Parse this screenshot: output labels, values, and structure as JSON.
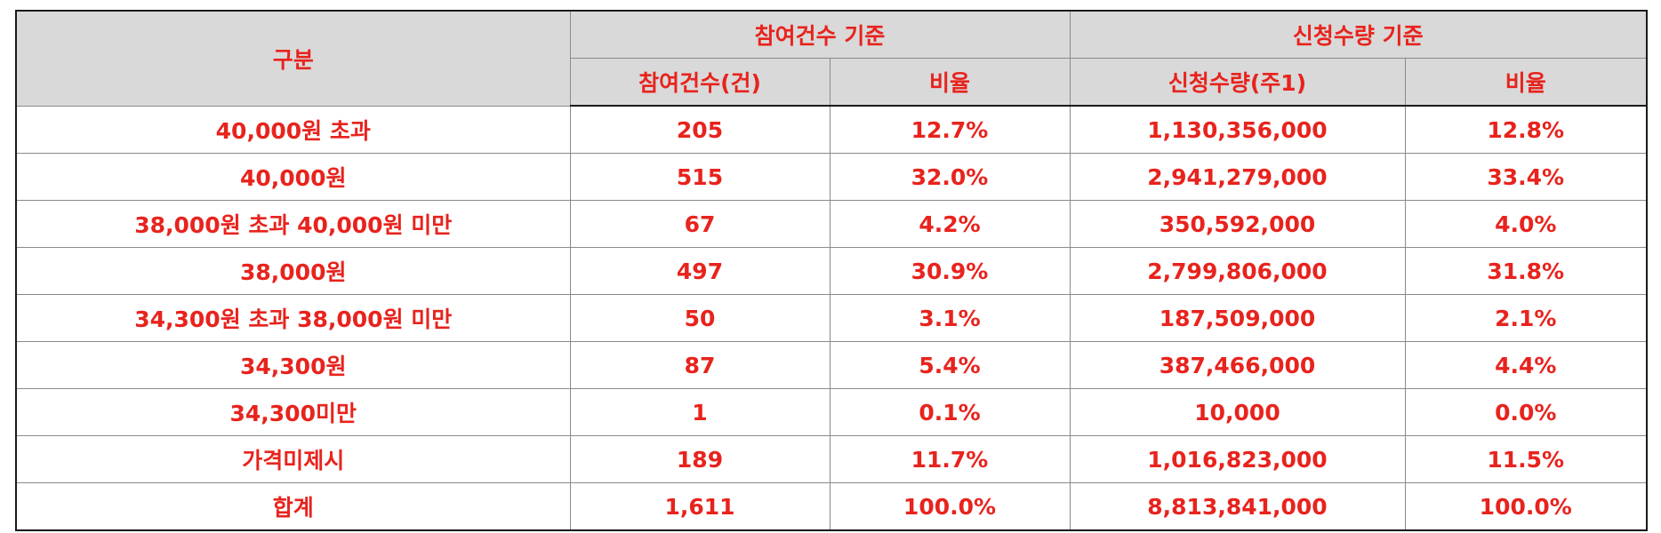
{
  "header": {
    "category_label": "구분",
    "group_count": "참여건수 기준",
    "group_qty": "신청수량 기준",
    "col_count": "참여건수(건)",
    "col_count_ratio": "비율",
    "col_qty": "신청수량(주1)",
    "col_qty_ratio": "비율"
  },
  "rows": [
    {
      "category": "40,000원 초과",
      "count": "205",
      "count_ratio": "12.7%",
      "qty": "1,130,356,000",
      "qty_ratio": "12.8%"
    },
    {
      "category": "40,000원",
      "count": "515",
      "count_ratio": "32.0%",
      "qty": "2,941,279,000",
      "qty_ratio": "33.4%"
    },
    {
      "category": "38,000원 초과 40,000원 미만",
      "count": "67",
      "count_ratio": "4.2%",
      "qty": "350,592,000",
      "qty_ratio": "4.0%"
    },
    {
      "category": "38,000원",
      "count": "497",
      "count_ratio": "30.9%",
      "qty": "2,799,806,000",
      "qty_ratio": "31.8%"
    },
    {
      "category": "34,300원 초과 38,000원 미만",
      "count": "50",
      "count_ratio": "3.1%",
      "qty": "187,509,000",
      "qty_ratio": "2.1%"
    },
    {
      "category": "34,300원",
      "count": "87",
      "count_ratio": "5.4%",
      "qty": "387,466,000",
      "qty_ratio": "4.4%"
    },
    {
      "category": "34,300미만",
      "count": "1",
      "count_ratio": "0.1%",
      "qty": "10,000",
      "qty_ratio": "0.0%"
    },
    {
      "category": "가격미제시",
      "count": "189",
      "count_ratio": "11.7%",
      "qty": "1,016,823,000",
      "qty_ratio": "11.5%"
    },
    {
      "category": "합계",
      "count": "1,611",
      "count_ratio": "100.0%",
      "qty": "8,813,841,000",
      "qty_ratio": "100.0%"
    }
  ],
  "colors": {
    "text": "#e8231d",
    "header_bg": "#d9d9d9",
    "border": "#8a8a8a"
  }
}
